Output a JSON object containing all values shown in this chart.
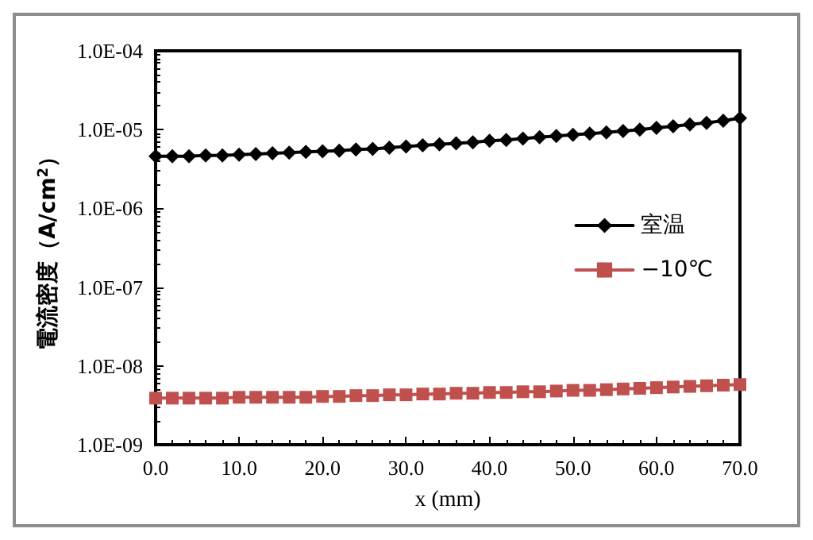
{
  "chart_data": {
    "type": "line",
    "xlabel": "x (mm)",
    "ylabel": "電流密度（A/cm$^{2}$）",
    "x": [
      0,
      2,
      4,
      6,
      8,
      10,
      12,
      14,
      16,
      18,
      20,
      22,
      24,
      26,
      28,
      30,
      32,
      34,
      36,
      38,
      40,
      42,
      44,
      46,
      48,
      50,
      52,
      54,
      56,
      58,
      60,
      62,
      64,
      66,
      68,
      70
    ],
    "series": [
      {
        "name": "室温",
        "color": "#000000",
        "marker": "diamond",
        "values": [
          4.6e-06,
          4.6e-06,
          4.6e-06,
          4.7e-06,
          4.7e-06,
          4.8e-06,
          4.9e-06,
          5e-06,
          5.1e-06,
          5.2e-06,
          5.3e-06,
          5.4e-06,
          5.6e-06,
          5.7e-06,
          5.9e-06,
          6.1e-06,
          6.3e-06,
          6.5e-06,
          6.7e-06,
          6.9e-06,
          7.2e-06,
          7.4e-06,
          7.7e-06,
          8e-06,
          8.3e-06,
          8.6e-06,
          8.9e-06,
          9.2e-06,
          9.6e-06,
          1e-05,
          1.05e-05,
          1.1e-05,
          1.16e-05,
          1.22e-05,
          1.3e-05,
          1.4e-05
        ]
      },
      {
        "name": "−10℃",
        "color": "#c0504d",
        "marker": "square",
        "values": [
          3.9e-09,
          3.9e-09,
          3.9e-09,
          3.9e-09,
          3.9e-09,
          4e-09,
          4e-09,
          4e-09,
          4e-09,
          4e-09,
          4.1e-09,
          4.1e-09,
          4.2e-09,
          4.2e-09,
          4.3e-09,
          4.3e-09,
          4.4e-09,
          4.4e-09,
          4.5e-09,
          4.5e-09,
          4.6e-09,
          4.6e-09,
          4.7e-09,
          4.7e-09,
          4.8e-09,
          4.9e-09,
          4.9e-09,
          5e-09,
          5.1e-09,
          5.2e-09,
          5.3e-09,
          5.4e-09,
          5.5e-09,
          5.6e-09,
          5.7e-09,
          5.8e-09
        ]
      }
    ],
    "log": "y",
    "xlim": [
      0,
      70
    ],
    "xticks": [
      {
        "value": 0,
        "label": "0.0"
      },
      {
        "value": 10,
        "label": "10.0"
      },
      {
        "value": 20,
        "label": "20.0"
      },
      {
        "value": 30,
        "label": "30.0"
      },
      {
        "value": 40,
        "label": "40.0"
      },
      {
        "value": 50,
        "label": "50.0"
      },
      {
        "value": 60,
        "label": "60.0"
      },
      {
        "value": 70,
        "label": "70.0"
      }
    ],
    "ylim": [
      1e-09,
      0.0001
    ],
    "yticks": [
      {
        "value": 1e-09,
        "label": "1.0E-09"
      },
      {
        "value": 1e-08,
        "label": "1.0E-08"
      },
      {
        "value": 1e-07,
        "label": "1.0E-07"
      },
      {
        "value": 1e-06,
        "label": "1.0E-06"
      },
      {
        "value": 1e-05,
        "label": "1.0E-05"
      },
      {
        "value": 0.0001,
        "label": "1.0E-04"
      }
    ],
    "grid": false,
    "legend": "right"
  }
}
